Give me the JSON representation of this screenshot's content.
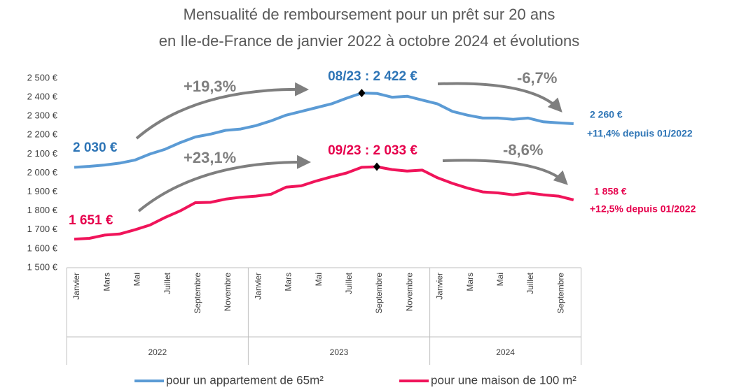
{
  "chart_data": {
    "type": "line",
    "title": [
      "Mensualité de remboursement pour un prêt sur 20 ans",
      "en Ile-de-France de janvier 2022 à octobre 2024 et évolutions"
    ],
    "categories": [
      "Janvier",
      null,
      "Mars",
      null,
      "Mai",
      null,
      "Juillet",
      null,
      "Septembre",
      null,
      "Novembre",
      null,
      "Janvier",
      null,
      "Mars",
      null,
      "Mai",
      null,
      "Juillet",
      null,
      "Septembre",
      null,
      "Novembre",
      null,
      "Janvier",
      null,
      "Mars",
      null,
      "Mai",
      null,
      "Juillet",
      null,
      "Septembre",
      null
    ],
    "x_groups": [
      {
        "label": "2022",
        "count": 12
      },
      {
        "label": "2023",
        "count": 12
      },
      {
        "label": "2024",
        "count": 10
      }
    ],
    "series": [
      {
        "name": "pour un appartement de 65m²",
        "color": "#5b9bd5",
        "values": [
          2030,
          2035,
          2042,
          2052,
          2068,
          2100,
          2125,
          2160,
          2190,
          2205,
          2225,
          2232,
          2250,
          2275,
          2305,
          2325,
          2345,
          2365,
          2395,
          2422,
          2420,
          2400,
          2405,
          2385,
          2365,
          2325,
          2305,
          2290,
          2290,
          2283,
          2290,
          2270,
          2265,
          2260
        ]
      },
      {
        "name": "pour une maison de 100 m²",
        "color": "#f0145a",
        "values": [
          1651,
          1655,
          1672,
          1678,
          1700,
          1725,
          1765,
          1800,
          1843,
          1845,
          1862,
          1872,
          1878,
          1888,
          1925,
          1932,
          1958,
          1980,
          2000,
          2030,
          2033,
          2018,
          2010,
          2015,
          1975,
          1945,
          1920,
          1900,
          1895,
          1885,
          1895,
          1885,
          1878,
          1858
        ]
      }
    ],
    "ylim": [
      1500,
      2500
    ],
    "yticks": [
      {
        "value": 1500,
        "label": "1 500 €"
      },
      {
        "value": 1600,
        "label": "1 600 €"
      },
      {
        "value": 1700,
        "label": "1 700 €"
      },
      {
        "value": 1800,
        "label": "1 800 €"
      },
      {
        "value": 1900,
        "label": "1 900 €"
      },
      {
        "value": 2000,
        "label": "2 000 €"
      },
      {
        "value": 2100,
        "label": "2 100 €"
      },
      {
        "value": 2200,
        "label": "2 200 €"
      },
      {
        "value": 2300,
        "label": "2 300 €"
      },
      {
        "value": 2400,
        "label": "2 400 €"
      },
      {
        "value": 2500,
        "label": "2 500 €"
      }
    ],
    "grid": false,
    "legend": "bottom",
    "annotations": [
      "2 030 €",
      "1 651 €",
      "+19,3%",
      "+23,1%",
      "08/23 : 2 422 €",
      "09/23 : 2 033 €",
      "-6,7%",
      "-8,6%",
      "2 260 €",
      "+11,4% depuis 01/2022",
      "1 858 €",
      "+12,5% depuis 01/2022"
    ]
  }
}
